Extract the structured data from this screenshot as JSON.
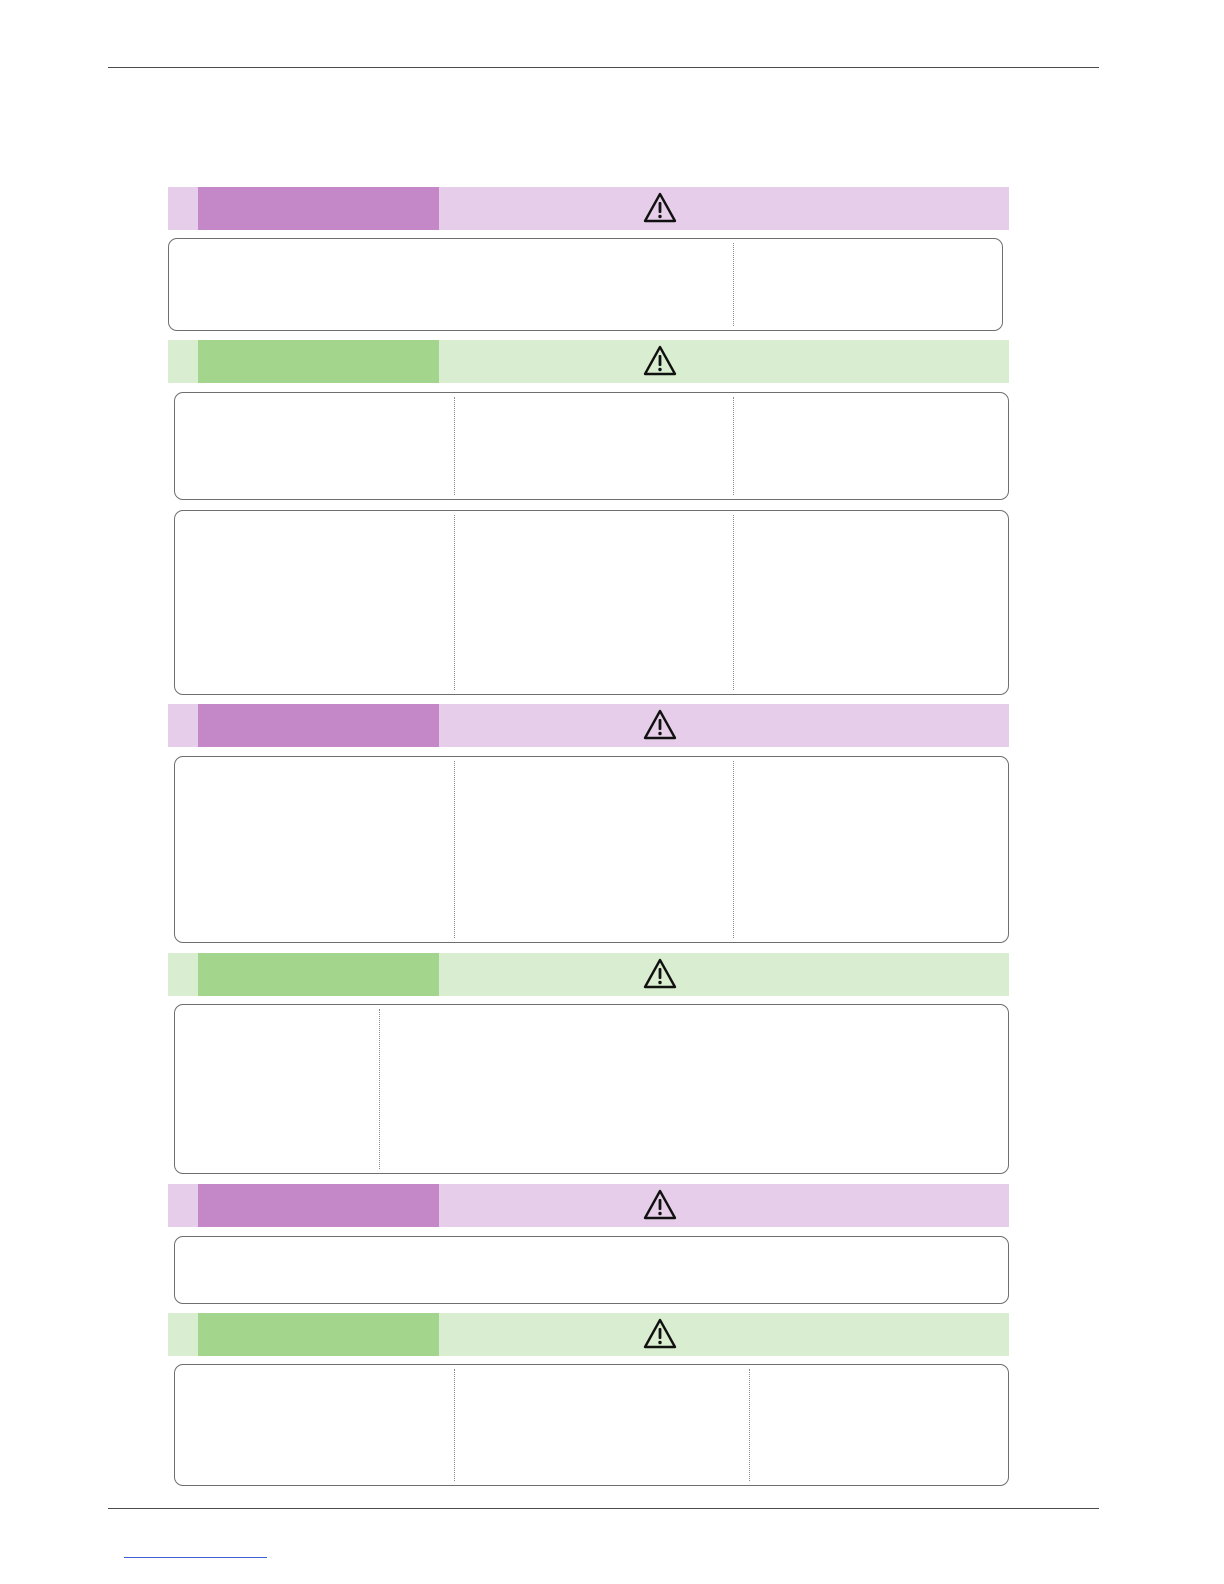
{
  "page": {
    "sections": [
      {
        "theme": "purple",
        "icon": "warning-icon"
      },
      {
        "theme": "green",
        "icon": "warning-icon"
      },
      {
        "theme": "purple",
        "icon": "warning-icon"
      },
      {
        "theme": "green",
        "icon": "warning-icon"
      },
      {
        "theme": "purple",
        "icon": "warning-icon"
      },
      {
        "theme": "green",
        "icon": "warning-icon"
      }
    ]
  },
  "colors": {
    "purple_tab": "#c488c9",
    "purple_bar": "#e6cde9",
    "green_tab": "#a3d68c",
    "green_bar": "#d9edd0",
    "rule": "#4a4a4a",
    "link": "#3c5fd6"
  }
}
